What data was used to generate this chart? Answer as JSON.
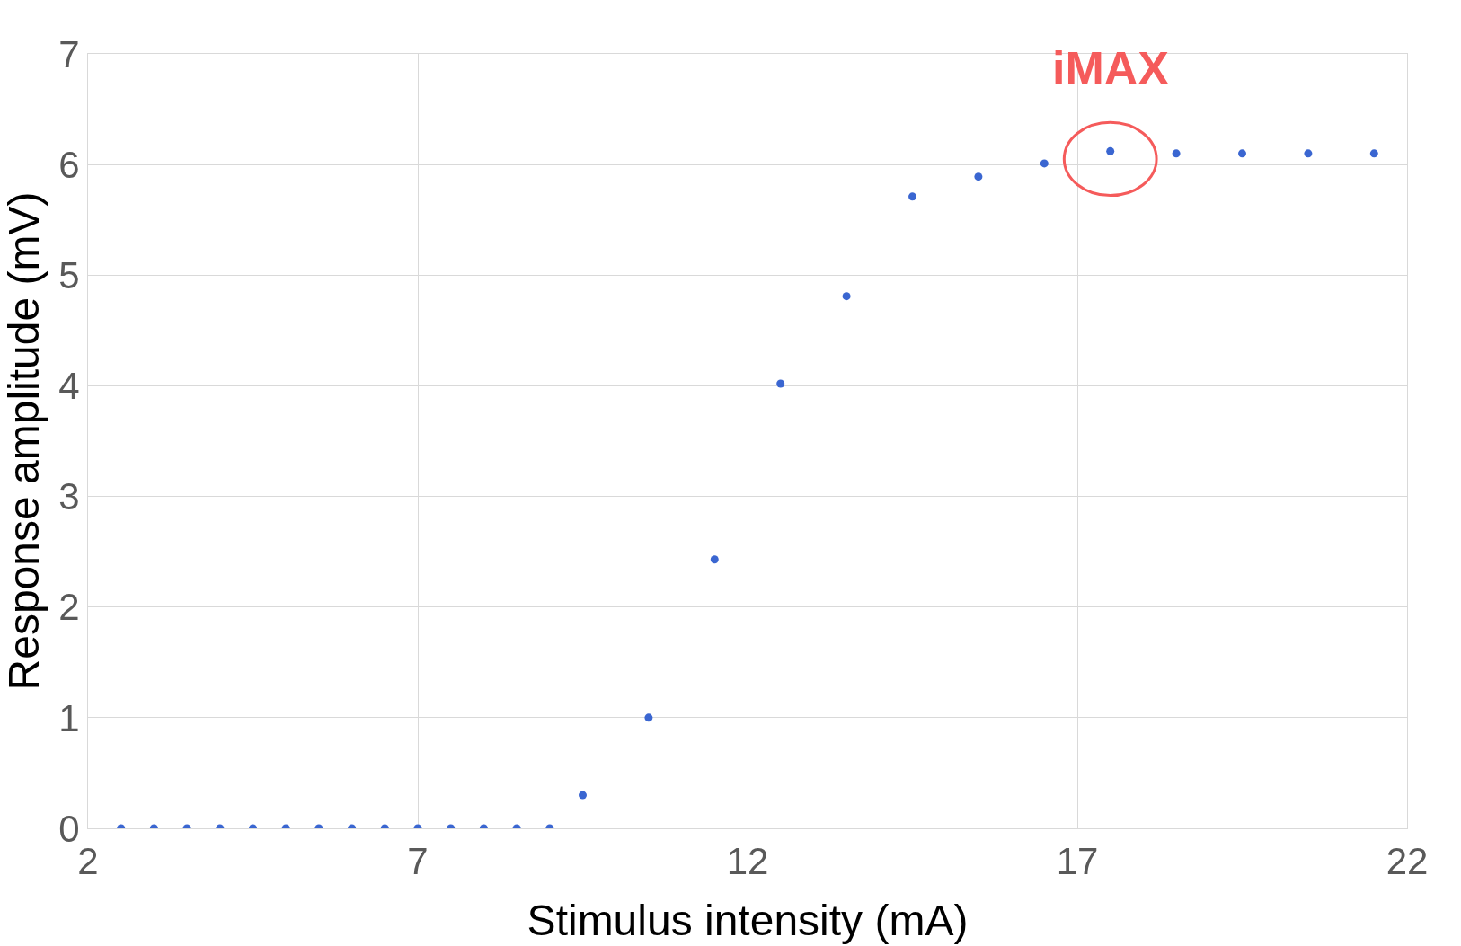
{
  "chart_data": {
    "type": "scatter",
    "xlabel": "Stimulus intensity (mA)",
    "ylabel": "Response amplitude (mV)",
    "x": [
      2.5,
      3,
      3.5,
      4,
      4.5,
      5,
      5.5,
      6,
      6.5,
      7,
      7.5,
      8,
      8.5,
      9,
      9.5,
      10.5,
      11.5,
      12.5,
      13.5,
      14.5,
      15.5,
      16.5,
      17.5,
      18.5,
      19.5,
      20.5,
      21.5
    ],
    "values": [
      0,
      0,
      0,
      0,
      0,
      0,
      0,
      0,
      0,
      0,
      0,
      0,
      0,
      0,
      0.3,
      1.0,
      2.43,
      4.02,
      4.81,
      5.71,
      5.89,
      6.01,
      6.12,
      6.1,
      6.1,
      6.1,
      6.1
    ],
    "color": "#3a66d1",
    "marker": "circle",
    "xlim": [
      2,
      22
    ],
    "xticks": [
      2,
      7,
      12,
      17,
      22
    ],
    "ylim": [
      0,
      7
    ],
    "yticks": [
      0,
      1,
      2,
      3,
      4,
      5,
      6,
      7
    ],
    "grid": true,
    "annotations": [
      {
        "text": "iMAX",
        "x": 17.5,
        "y": 6.12
      }
    ]
  }
}
